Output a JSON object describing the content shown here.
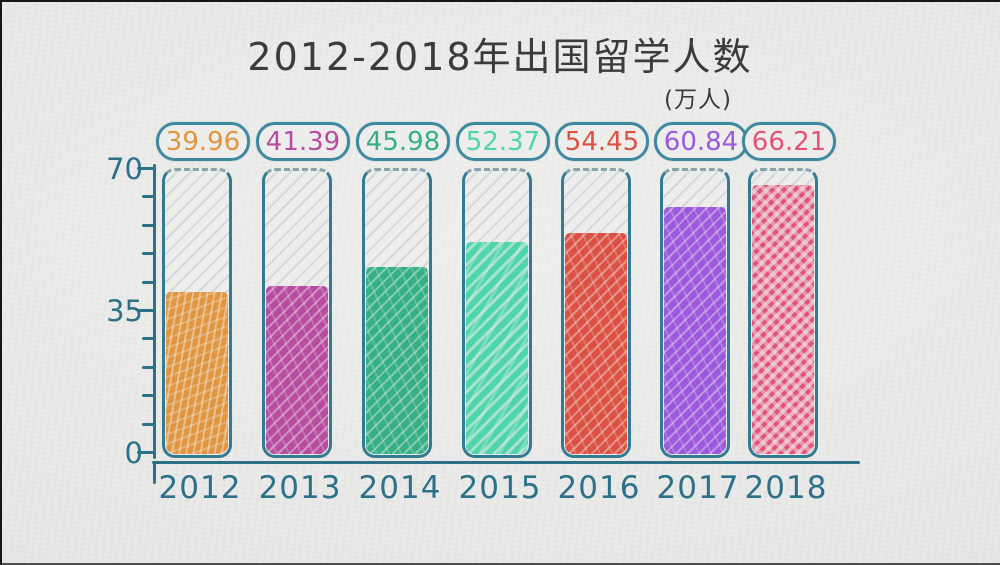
{
  "title": "2012-2018年出国留学人数",
  "unit_label": "(万人)",
  "chart_data": {
    "type": "bar",
    "title": "2012-2018年出国留学人数",
    "unit": "万人",
    "categories": [
      "2012",
      "2013",
      "2014",
      "2015",
      "2016",
      "2017",
      "2018"
    ],
    "values": [
      39.96,
      41.39,
      45.98,
      52.37,
      54.45,
      60.84,
      66.21
    ],
    "bar_colors": [
      "#e2953f",
      "#b84da0",
      "#35b085",
      "#4ed5ac",
      "#dc5144",
      "#9c58de",
      "#e4527b"
    ],
    "ylim": [
      0,
      70
    ],
    "y_ticks": [
      "70",
      "35",
      "0"
    ],
    "xlabel": "",
    "ylabel": "",
    "grid": false,
    "legend": null,
    "axis_color": "#2d7189",
    "style": "hand-drawn hatched bars on paper background"
  }
}
